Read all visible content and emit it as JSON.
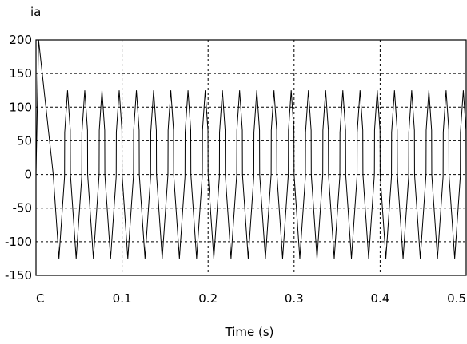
{
  "chart_data": {
    "type": "line",
    "title": "",
    "ylabel": "ia",
    "xlabel": "Time (s)",
    "xlim": [
      0,
      0.5
    ],
    "ylim": [
      -150,
      200
    ],
    "x_ticks": [
      0,
      0.1,
      0.2,
      0.3,
      0.4,
      0.5
    ],
    "x_tick_labels": [
      "C",
      "0.1",
      "0.2",
      "0.3",
      "0.4",
      "0.5"
    ],
    "y_ticks": [
      200,
      150,
      100,
      50,
      0,
      -50,
      -100,
      -150
    ],
    "y_tick_labels": [
      "200",
      "150",
      "100",
      "50",
      "0",
      "-50",
      "-100",
      "-150"
    ],
    "grid": true,
    "series": [
      {
        "waveform": "six-step phase current",
        "fundamental_hz": 50,
        "peak_amplitude": 125,
        "startup_peak": 200,
        "startup_peak_time": 0.003,
        "steady_state_from": 0.02,
        "color": "#000000"
      }
    ]
  },
  "colors": {
    "background": "#ffffff",
    "frame": "#000000",
    "grid": "#000000",
    "trace": "#000000"
  }
}
